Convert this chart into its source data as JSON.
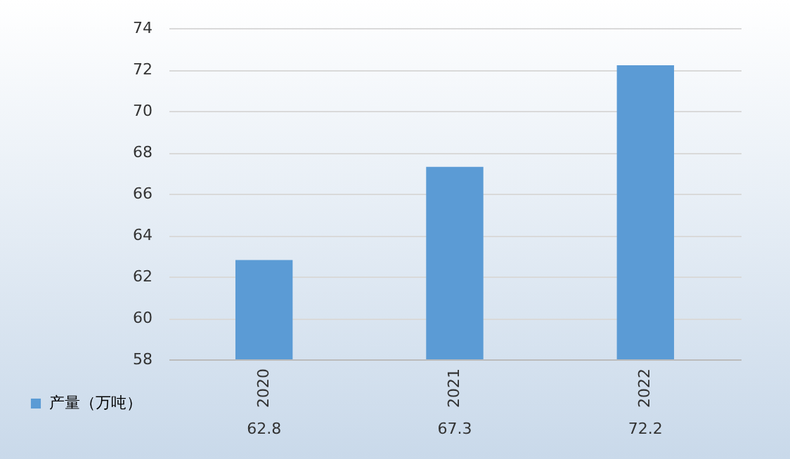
{
  "chart_data": {
    "type": "bar",
    "categories": [
      "2020",
      "2021",
      "2022"
    ],
    "series": [
      {
        "name": "产量（万吨）",
        "color": "#5b9bd5",
        "values": [
          62.8,
          67.3,
          72.2
        ]
      }
    ],
    "ylim": [
      58,
      74
    ],
    "yticks": [
      58,
      60,
      62,
      64,
      66,
      68,
      70,
      72,
      74
    ],
    "grid": "y",
    "legend": "bottom left",
    "data_labels": true
  }
}
